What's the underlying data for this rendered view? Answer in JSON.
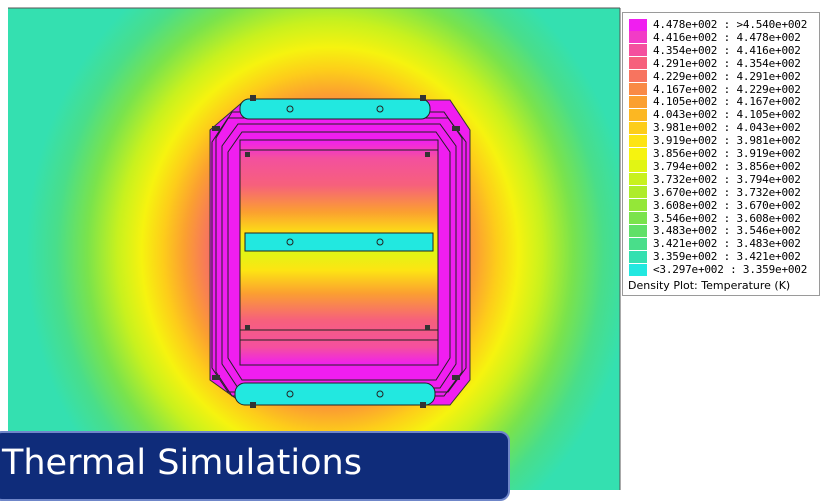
{
  "legend": {
    "caption": "Density Plot: Temperature (K)",
    "entries": [
      {
        "label": "4.478e+002 : >4.540e+002",
        "color": "#f01ef0"
      },
      {
        "label": "4.416e+002 : 4.478e+002",
        "color": "#f23cc6"
      },
      {
        "label": "4.354e+002 : 4.416e+002",
        "color": "#f4509e"
      },
      {
        "label": "4.291e+002 : 4.354e+002",
        "color": "#f6607c"
      },
      {
        "label": "4.229e+002 : 4.291e+002",
        "color": "#f7745f"
      },
      {
        "label": "4.167e+002 : 4.229e+002",
        "color": "#f98a45"
      },
      {
        "label": "4.105e+002 : 4.167e+002",
        "color": "#fba030"
      },
      {
        "label": "4.043e+002 : 4.105e+002",
        "color": "#fcb722"
      },
      {
        "label": "3.981e+002 : 4.043e+002",
        "color": "#fdcd1a"
      },
      {
        "label": "3.919e+002 : 3.981e+002",
        "color": "#fde413"
      },
      {
        "label": "3.856e+002 : 3.919e+002",
        "color": "#f6f30f"
      },
      {
        "label": "3.794e+002 : 3.856e+002",
        "color": "#e1f514"
      },
      {
        "label": "3.732e+002 : 3.794e+002",
        "color": "#c8f11e"
      },
      {
        "label": "3.670e+002 : 3.732e+002",
        "color": "#aeec2a"
      },
      {
        "label": "3.608e+002 : 3.670e+002",
        "color": "#94e738"
      },
      {
        "label": "3.546e+002 : 3.608e+002",
        "color": "#7ae34c"
      },
      {
        "label": "3.483e+002 : 3.546e+002",
        "color": "#60e068"
      },
      {
        "label": "3.421e+002 : 3.483e+002",
        "color": "#49de8a"
      },
      {
        "label": "3.359e+002 : 3.421e+002",
        "color": "#34e0b0"
      },
      {
        "label": "<3.297e+002 : 3.359e+002",
        "color": "#22e8e0"
      }
    ]
  },
  "banner": {
    "title": "Thermal Simulations",
    "background": "#0f2c7a"
  },
  "colors": {
    "hot": "#f01ef0",
    "cool": "#22e8e0",
    "outer": "#46dc9a"
  }
}
